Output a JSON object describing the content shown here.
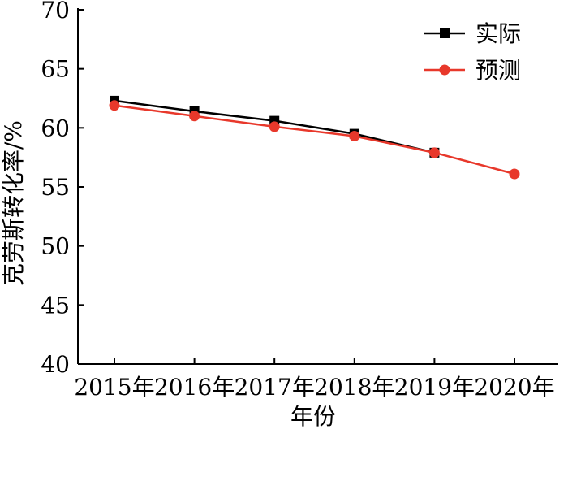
{
  "chart_data": {
    "type": "line",
    "categories": [
      "2015年",
      "2016年",
      "2017年",
      "2018年",
      "2019年",
      "2020年"
    ],
    "series": [
      {
        "name": "实际",
        "color": "#000000",
        "marker": "square",
        "values": [
          62.3,
          61.4,
          60.6,
          59.5,
          57.9,
          null
        ]
      },
      {
        "name": "预测",
        "color": "#e8382b",
        "marker": "circle",
        "values": [
          61.9,
          61.0,
          60.1,
          59.3,
          57.9,
          56.1
        ]
      }
    ],
    "xlabel": "年份",
    "ylabel": "克劳斯转化率/%",
    "ylim": [
      40,
      70
    ],
    "yticks": [
      40,
      45,
      50,
      55,
      60,
      65,
      70
    ],
    "grid": false,
    "legend_position": "top-right"
  }
}
